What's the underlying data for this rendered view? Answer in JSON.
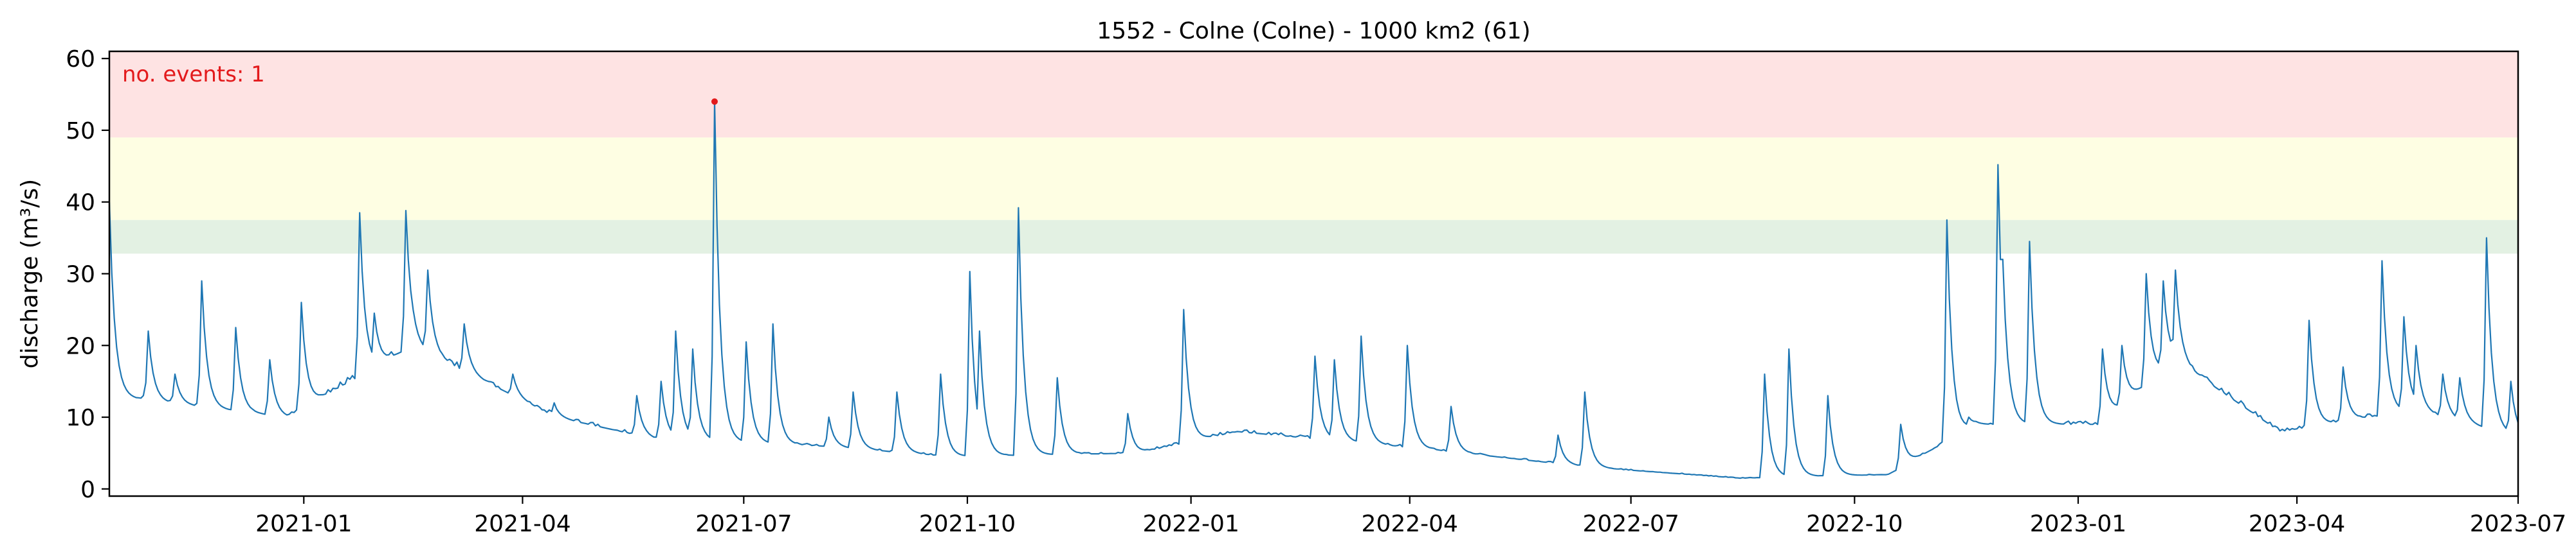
{
  "chart_data": {
    "type": "line",
    "title": "1552 - Colne (Colne) - 1000 km2 (61)",
    "xlabel": "",
    "ylabel": "discharge (m³/s)",
    "xlim": [
      "2020-10-13",
      "2023-07-01"
    ],
    "ylim": [
      -1,
      61
    ],
    "xticks": [
      "2021-01",
      "2021-04",
      "2021-07",
      "2021-10",
      "2022-01",
      "2022-04",
      "2022-07",
      "2022-10",
      "2023-01",
      "2023-04",
      "2023-07"
    ],
    "yticks": [
      0,
      10,
      20,
      30,
      40,
      50,
      60
    ],
    "grid": false,
    "annotation": "no. events: 1",
    "bands": [
      {
        "from": 32.8,
        "to": 37.5,
        "color": "#e3f1e3"
      },
      {
        "from": 37.5,
        "to": 49.0,
        "color": "#fefee3"
      },
      {
        "from": 49.0,
        "to": 61,
        "color": "#fee3e3"
      }
    ],
    "event_points": [
      {
        "x": "2021-06-19",
        "y": 54
      }
    ],
    "series": [
      {
        "color": "#1f77b4",
        "events": [
          [
            "2020-10-13",
            40
          ],
          [
            "2020-10-29",
            22
          ],
          [
            "2020-11-09",
            16
          ],
          [
            "2020-11-20",
            29
          ],
          [
            "2020-12-04",
            22.5
          ],
          [
            "2020-12-18",
            18
          ],
          [
            "2020-12-31",
            26
          ],
          [
            "2021-01-24",
            38.5
          ],
          [
            "2021-01-30",
            24.5
          ],
          [
            "2021-02-12",
            38.8
          ],
          [
            "2021-02-21",
            30.5
          ],
          [
            "2021-03-08",
            23
          ],
          [
            "2021-03-28",
            16
          ],
          [
            "2021-04-14",
            12
          ],
          [
            "2021-05-18",
            13
          ],
          [
            "2021-05-28",
            15
          ],
          [
            "2021-06-03",
            22
          ],
          [
            "2021-06-10",
            19.5
          ],
          [
            "2021-06-19",
            54
          ],
          [
            "2021-07-02",
            20.5
          ],
          [
            "2021-07-13",
            23
          ],
          [
            "2021-08-05",
            10
          ],
          [
            "2021-08-15",
            13.5
          ],
          [
            "2021-09-02",
            13.5
          ],
          [
            "2021-09-20",
            16
          ],
          [
            "2021-10-02",
            30.3
          ],
          [
            "2021-10-06",
            22
          ],
          [
            "2021-10-22",
            39.2
          ],
          [
            "2021-11-07",
            15.5
          ],
          [
            "2021-12-06",
            10.5
          ],
          [
            "2021-12-29",
            25
          ],
          [
            "2022-02-21",
            18.5
          ],
          [
            "2022-03-01",
            18
          ],
          [
            "2022-03-12",
            21.3
          ],
          [
            "2022-03-31",
            20
          ],
          [
            "2022-04-18",
            11.5
          ],
          [
            "2022-06-01",
            7.5
          ],
          [
            "2022-06-12",
            13.5
          ],
          [
            "2022-08-25",
            16
          ],
          [
            "2022-09-04",
            19.5
          ],
          [
            "2022-09-20",
            13
          ],
          [
            "2022-10-20",
            9
          ],
          [
            "2022-11-08",
            37.5
          ],
          [
            "2022-11-17",
            10
          ],
          [
            "2022-11-29",
            45.2
          ],
          [
            "2022-12-01",
            32
          ],
          [
            "2022-12-12",
            34.5
          ],
          [
            "2023-01-11",
            19.5
          ],
          [
            "2023-01-19",
            20
          ],
          [
            "2023-01-29",
            30
          ],
          [
            "2023-02-05",
            29
          ],
          [
            "2023-02-10",
            30.5
          ],
          [
            "2023-04-06",
            23.5
          ],
          [
            "2023-04-20",
            17
          ],
          [
            "2023-05-06",
            31.8
          ],
          [
            "2023-05-15",
            24
          ],
          [
            "2023-05-20",
            20
          ],
          [
            "2023-05-31",
            16
          ],
          [
            "2023-06-07",
            15.5
          ],
          [
            "2023-06-18",
            35
          ],
          [
            "2023-06-28",
            15
          ],
          [
            "2023-07-16",
            9.5
          ]
        ]
      }
    ]
  }
}
